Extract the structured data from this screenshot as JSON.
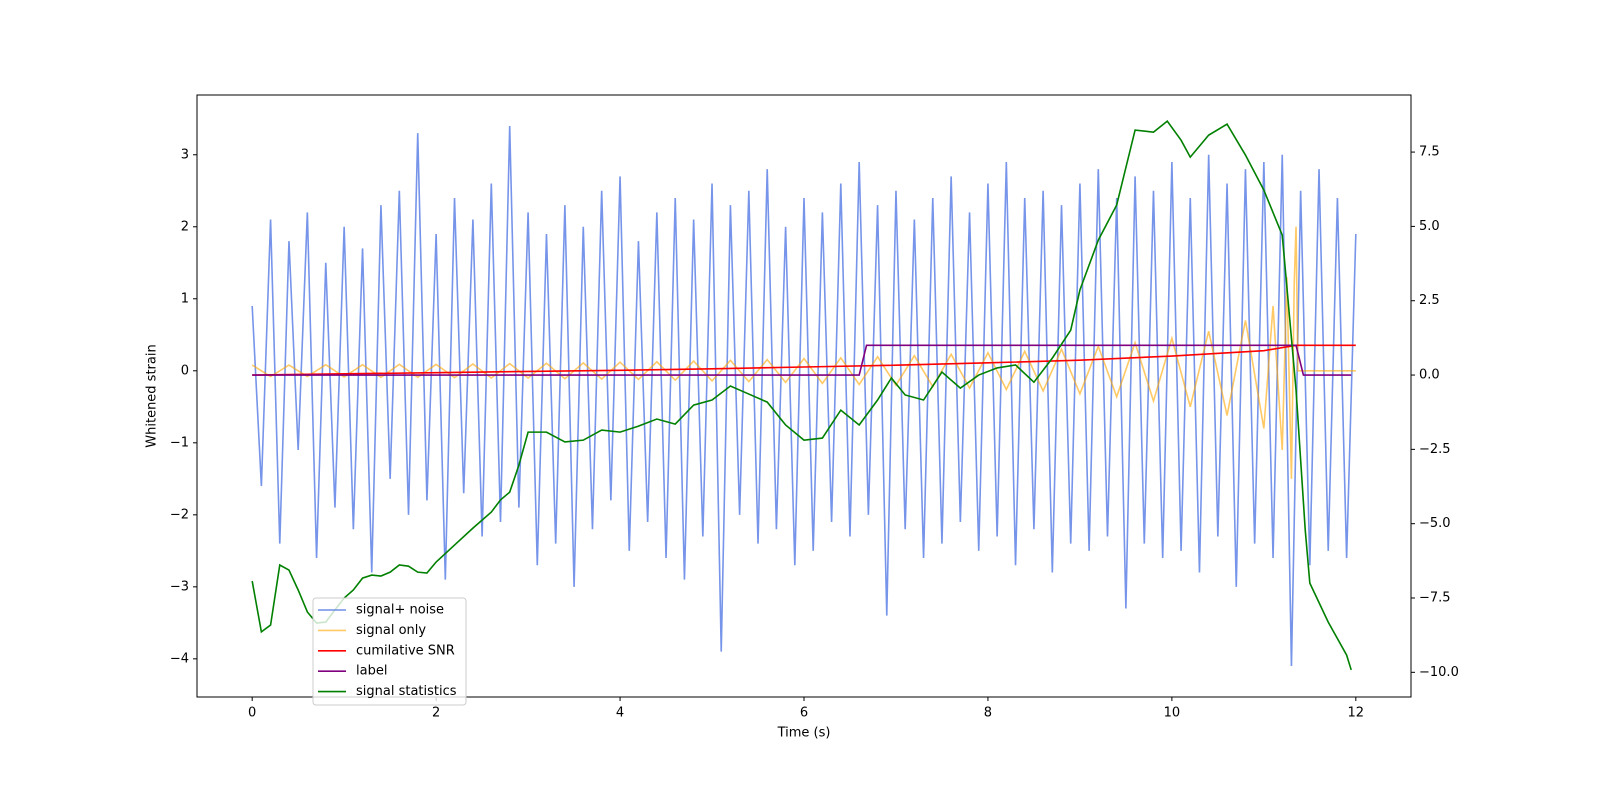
{
  "chart_data": {
    "type": "line",
    "xlabel": "Time (s)",
    "ylabel": "Whitened strain",
    "xlim": [
      -0.6,
      12.6
    ],
    "ylim": [
      -4.53,
      3.83
    ],
    "y2lim": [
      -10.83,
      9.42
    ],
    "xticks": [
      0,
      2,
      4,
      6,
      8,
      10,
      12
    ],
    "yticks": [
      {
        "value": -4,
        "label": "−4"
      },
      {
        "value": -3,
        "label": "−3"
      },
      {
        "value": -2,
        "label": "−2"
      },
      {
        "value": -1,
        "label": "−1"
      },
      0,
      1,
      2,
      3
    ],
    "y2ticks": [
      {
        "value": -10,
        "label": "−10.0"
      },
      {
        "value": -7.5,
        "label": "−7.5"
      },
      {
        "value": -5,
        "label": "−5.0"
      },
      {
        "value": -2.5,
        "label": "−2.5"
      },
      {
        "value": 0,
        "label": "0.0"
      },
      2.5,
      {
        "value": 5,
        "label": "5.0"
      },
      7.5
    ],
    "legend": "lower left",
    "series": [
      {
        "name": "signal+ noise",
        "color": "#6f8ee8",
        "axis": "y",
        "x": [
          0,
          0.1,
          0.2,
          0.3,
          0.4,
          0.5,
          0.6,
          0.7,
          0.8,
          0.9,
          1,
          1.1,
          1.2,
          1.3,
          1.4,
          1.5,
          1.6,
          1.7,
          1.8,
          1.9,
          2,
          2.1,
          2.2,
          2.3,
          2.4,
          2.5,
          2.6,
          2.7,
          2.8,
          2.9,
          3,
          3.1,
          3.2,
          3.3,
          3.4,
          3.5,
          3.6,
          3.7,
          3.8,
          3.9,
          4,
          4.1,
          4.2,
          4.3,
          4.4,
          4.5,
          4.6,
          4.7,
          4.8,
          4.9,
          5,
          5.1,
          5.2,
          5.3,
          5.4,
          5.5,
          5.6,
          5.7,
          5.8,
          5.9,
          6,
          6.1,
          6.2,
          6.3,
          6.4,
          6.5,
          6.6,
          6.7,
          6.8,
          6.9,
          7,
          7.1,
          7.2,
          7.3,
          7.4,
          7.5,
          7.6,
          7.7,
          7.8,
          7.9,
          8,
          8.1,
          8.2,
          8.3,
          8.4,
          8.5,
          8.6,
          8.7,
          8.8,
          8.9,
          9,
          9.1,
          9.2,
          9.3,
          9.4,
          9.5,
          9.6,
          9.7,
          9.8,
          9.9,
          10,
          10.1,
          10.2,
          10.3,
          10.4,
          10.5,
          10.6,
          10.7,
          10.8,
          10.9,
          11,
          11.1,
          11.2,
          11.3,
          11.4,
          11.5,
          11.6,
          11.7,
          11.8,
          11.9,
          12
        ],
        "values": [
          0.9,
          -1.6,
          2.1,
          -2.4,
          1.8,
          -1.1,
          2.2,
          -2.6,
          1.5,
          -1.9,
          2.0,
          -2.2,
          1.7,
          -2.8,
          2.3,
          -1.5,
          2.5,
          -2.0,
          3.3,
          -1.8,
          1.9,
          -2.9,
          2.4,
          -1.7,
          2.1,
          -2.3,
          2.6,
          -2.1,
          3.4,
          -1.9,
          2.2,
          -2.7,
          1.9,
          -2.4,
          2.3,
          -3.0,
          2.0,
          -2.2,
          2.5,
          -1.8,
          2.7,
          -2.5,
          1.8,
          -2.1,
          2.2,
          -2.6,
          2.4,
          -2.9,
          2.1,
          -2.3,
          2.6,
          -3.9,
          2.3,
          -2.0,
          2.5,
          -2.4,
          2.8,
          -2.2,
          2.0,
          -2.7,
          2.4,
          -2.5,
          2.2,
          -2.1,
          2.6,
          -2.3,
          2.9,
          -2.0,
          2.3,
          -3.4,
          2.5,
          -2.2,
          2.1,
          -2.6,
          2.4,
          -2.4,
          2.7,
          -2.1,
          2.2,
          -2.5,
          2.6,
          -2.3,
          2.9,
          -2.7,
          2.4,
          -2.2,
          2.5,
          -2.8,
          2.3,
          -2.4,
          2.6,
          -2.5,
          2.8,
          -2.3,
          2.4,
          -3.3,
          2.7,
          -2.4,
          2.5,
          -2.6,
          2.9,
          -2.5,
          2.4,
          -2.8,
          3.0,
          -2.3,
          2.6,
          -3.0,
          2.8,
          -2.4,
          2.9,
          -2.6,
          3.0,
          -4.1,
          2.5,
          -2.7,
          2.8,
          -2.5,
          2.4,
          -2.6,
          1.9
        ]
      },
      {
        "name": "signal only",
        "color": "#ffa500",
        "axis": "y",
        "x": [
          0,
          0.2,
          0.4,
          0.6,
          0.8,
          1,
          1.2,
          1.4,
          1.6,
          1.8,
          2,
          2.2,
          2.4,
          2.6,
          2.8,
          3,
          3.2,
          3.4,
          3.6,
          3.8,
          4,
          4.2,
          4.4,
          4.6,
          4.8,
          5,
          5.2,
          5.4,
          5.6,
          5.8,
          6,
          6.2,
          6.4,
          6.6,
          6.8,
          7,
          7.2,
          7.4,
          7.6,
          7.8,
          8,
          8.2,
          8.4,
          8.6,
          8.8,
          9,
          9.2,
          9.4,
          9.6,
          9.8,
          10,
          10.2,
          10.4,
          10.6,
          10.8,
          11,
          11.1,
          11.2,
          11.25,
          11.3,
          11.33,
          11.35,
          11.37,
          12
        ],
        "values": [
          0.08,
          -0.08,
          0.08,
          -0.08,
          0.085,
          -0.085,
          0.085,
          -0.09,
          0.09,
          -0.09,
          0.09,
          -0.095,
          0.095,
          -0.1,
          0.1,
          -0.1,
          0.105,
          -0.11,
          0.11,
          -0.115,
          0.12,
          -0.12,
          0.125,
          -0.13,
          0.135,
          -0.14,
          0.145,
          -0.15,
          0.155,
          -0.16,
          0.17,
          -0.175,
          0.18,
          -0.19,
          0.195,
          -0.2,
          0.21,
          -0.22,
          0.23,
          -0.24,
          0.25,
          -0.26,
          0.27,
          -0.28,
          0.3,
          -0.32,
          0.34,
          -0.36,
          0.39,
          -0.42,
          0.45,
          -0.5,
          0.55,
          -0.62,
          0.7,
          -0.8,
          0.9,
          -1.1,
          1.3,
          -1.5,
          1.2,
          2.0,
          0,
          0
        ]
      },
      {
        "name": "cumilative SNR",
        "color": "#ff0000",
        "axis": "y2",
        "x": [
          0,
          1,
          2,
          3,
          4,
          5,
          6,
          7,
          8,
          9,
          10,
          11,
          11.35,
          12
        ],
        "values": [
          0,
          0.04,
          0.08,
          0.12,
          0.16,
          0.21,
          0.27,
          0.33,
          0.41,
          0.5,
          0.64,
          0.82,
          1.0,
          1.0
        ]
      },
      {
        "name": "label",
        "color": "#800080",
        "axis": "y2",
        "x": [
          0,
          6.6,
          6.68,
          11.35,
          11.43,
          11.95
        ],
        "values": [
          0,
          0,
          1,
          1,
          0,
          0
        ]
      },
      {
        "name": "signal statistics",
        "color": "#008000",
        "axis": "y2",
        "x": [
          0,
          0.1,
          0.2,
          0.3,
          0.4,
          0.5,
          0.6,
          0.7,
          0.8,
          0.9,
          1,
          1.1,
          1.2,
          1.3,
          1.4,
          1.5,
          1.6,
          1.7,
          1.8,
          1.9,
          2,
          2.2,
          2.4,
          2.6,
          2.7,
          2.8,
          2.9,
          3,
          3.2,
          3.4,
          3.6,
          3.8,
          4,
          4.2,
          4.4,
          4.6,
          4.8,
          5,
          5.2,
          5.4,
          5.6,
          5.8,
          6,
          6.2,
          6.4,
          6.6,
          6.8,
          6.95,
          7.1,
          7.3,
          7.5,
          7.7,
          7.9,
          8.1,
          8.3,
          8.5,
          8.7,
          8.9,
          9,
          9.2,
          9.4,
          9.6,
          9.8,
          9.95,
          10.1,
          10.2,
          10.4,
          10.6,
          10.8,
          11,
          11.2,
          11.35,
          11.45,
          11.5,
          11.7,
          11.9,
          11.95
        ],
        "values": [
          -6.93,
          -8.64,
          -8.41,
          -6.39,
          -6.56,
          -7.23,
          -7.97,
          -8.34,
          -8.31,
          -7.9,
          -7.5,
          -7.23,
          -6.83,
          -6.73,
          -6.76,
          -6.63,
          -6.39,
          -6.43,
          -6.63,
          -6.66,
          -6.29,
          -5.72,
          -5.15,
          -4.61,
          -4.2,
          -3.94,
          -3.03,
          -1.92,
          -1.92,
          -2.25,
          -2.19,
          -1.85,
          -1.92,
          -1.72,
          -1.48,
          -1.65,
          -1.01,
          -0.84,
          -0.37,
          -0.64,
          -0.91,
          -1.68,
          -2.19,
          -2.12,
          -1.18,
          -1.68,
          -0.84,
          -0.1,
          -0.67,
          -0.84,
          0.1,
          -0.44,
          0,
          0.24,
          0.34,
          -0.24,
          0.57,
          1.51,
          2.86,
          4.54,
          5.72,
          8.24,
          8.17,
          8.54,
          7.9,
          7.33,
          8.07,
          8.44,
          7.4,
          6.22,
          4.71,
          -0.5,
          -5.21,
          -7.0,
          -8.31,
          -9.42,
          -9.92
        ]
      }
    ]
  }
}
